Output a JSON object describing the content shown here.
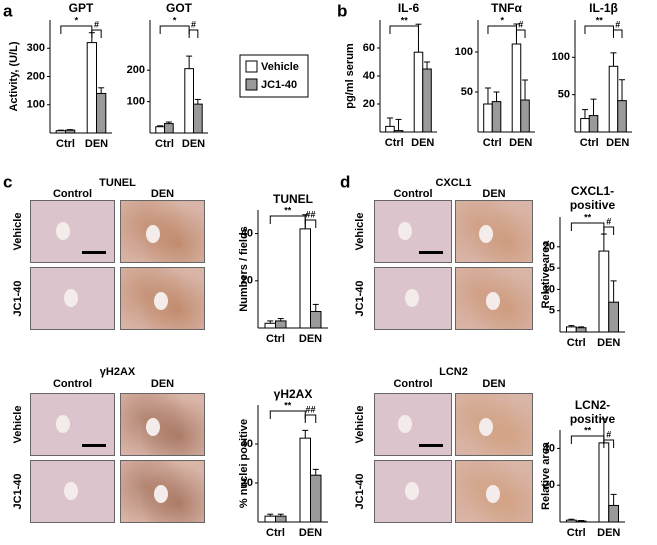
{
  "chart_data": [
    {
      "type": "bar",
      "title": "GPT",
      "y_label": "Activity, (U/L)",
      "categories": [
        "Ctrl",
        "DEN"
      ],
      "ylim": [
        0,
        400
      ],
      "yticks": [
        100,
        200,
        300
      ],
      "series": [
        {
          "name": "Vehicle",
          "color": "#ffffff",
          "values": [
            8,
            320
          ],
          "errors": [
            2,
            35
          ]
        },
        {
          "name": "JC1-40",
          "color": "#9a9a9a",
          "values": [
            10,
            140
          ],
          "errors": [
            2,
            20
          ]
        }
      ],
      "annotations": [
        "*",
        "#"
      ]
    },
    {
      "type": "bar",
      "title": "GOT",
      "categories": [
        "Ctrl",
        "DEN"
      ],
      "ylim": [
        0,
        360
      ],
      "yticks": [
        100,
        200
      ],
      "series": [
        {
          "name": "Vehicle",
          "color": "#ffffff",
          "values": [
            20,
            205
          ],
          "errors": [
            3,
            40
          ]
        },
        {
          "name": "JC1-40",
          "color": "#9a9a9a",
          "values": [
            30,
            92
          ],
          "errors": [
            5,
            15
          ]
        }
      ],
      "annotations": [
        "*",
        "#"
      ]
    },
    {
      "type": "bar",
      "title": "IL-6",
      "y_label": "pg/ml serum",
      "categories": [
        "Ctrl",
        "DEN"
      ],
      "ylim": [
        0,
        80
      ],
      "yticks": [
        20,
        40,
        60
      ],
      "series": [
        {
          "name": "Vehicle",
          "color": "#ffffff",
          "values": [
            4,
            57
          ],
          "errors": [
            6,
            20
          ]
        },
        {
          "name": "JC1-40",
          "color": "#9a9a9a",
          "values": [
            1,
            45
          ],
          "errors": [
            8,
            5
          ]
        }
      ],
      "annotations": [
        "**"
      ]
    },
    {
      "type": "bar",
      "title": "TNFα",
      "categories": [
        "Ctrl",
        "DEN"
      ],
      "ylim": [
        0,
        140
      ],
      "yticks": [
        50,
        100
      ],
      "series": [
        {
          "name": "Vehicle",
          "color": "#ffffff",
          "values": [
            35,
            110
          ],
          "errors": [
            20,
            25
          ]
        },
        {
          "name": "JC1-40",
          "color": "#9a9a9a",
          "values": [
            38,
            40
          ],
          "errors": [
            12,
            25
          ]
        }
      ],
      "annotations": [
        "*",
        "#"
      ]
    },
    {
      "type": "bar",
      "title": "IL-1β",
      "categories": [
        "Ctrl",
        "DEN"
      ],
      "ylim": [
        0,
        150
      ],
      "yticks": [
        50,
        100
      ],
      "series": [
        {
          "name": "Vehicle",
          "color": "#ffffff",
          "values": [
            18,
            88
          ],
          "errors": [
            12,
            18
          ]
        },
        {
          "name": "JC1-40",
          "color": "#9a9a9a",
          "values": [
            22,
            42
          ],
          "errors": [
            22,
            28
          ]
        }
      ],
      "annotations": [
        "**",
        "#"
      ]
    },
    {
      "type": "bar",
      "title": "TUNEL",
      "y_label": "Numbers / fields",
      "categories": [
        "Ctrl",
        "DEN"
      ],
      "ylim": [
        0,
        50
      ],
      "yticks": [
        20,
        40
      ],
      "series": [
        {
          "name": "Vehicle",
          "color": "#ffffff",
          "values": [
            2,
            42
          ],
          "errors": [
            1,
            6
          ]
        },
        {
          "name": "JC1-40",
          "color": "#9a9a9a",
          "values": [
            3,
            7
          ],
          "errors": [
            1,
            3
          ]
        }
      ],
      "annotations": [
        "**",
        "##"
      ]
    },
    {
      "type": "bar",
      "title": "γH2AX",
      "y_label": "% nuclei positive",
      "categories": [
        "Ctrl",
        "DEN"
      ],
      "ylim": [
        0,
        60
      ],
      "yticks": [
        20,
        40
      ],
      "series": [
        {
          "name": "Vehicle",
          "color": "#ffffff",
          "values": [
            3,
            43
          ],
          "errors": [
            1,
            4
          ]
        },
        {
          "name": "JC1-40",
          "color": "#9a9a9a",
          "values": [
            3,
            24
          ],
          "errors": [
            1,
            3
          ]
        }
      ],
      "annotations": [
        "**",
        "##"
      ]
    },
    {
      "type": "bar",
      "title": "CXCL1-positive",
      "y_label": "Relative area",
      "categories": [
        "Ctrl",
        "DEN"
      ],
      "ylim": [
        0,
        27
      ],
      "yticks": [
        5,
        10,
        15,
        20
      ],
      "series": [
        {
          "name": "Vehicle",
          "color": "#ffffff",
          "values": [
            1.2,
            19
          ],
          "errors": [
            0.3,
            4
          ]
        },
        {
          "name": "JC1-40",
          "color": "#9a9a9a",
          "values": [
            1,
            7
          ],
          "errors": [
            0.2,
            5
          ]
        }
      ],
      "annotations": [
        "**",
        "#"
      ]
    },
    {
      "type": "bar",
      "title": "LCN2-positive",
      "y_label": "Relative area",
      "categories": [
        "Ctrl",
        "DEN"
      ],
      "ylim": [
        0,
        50
      ],
      "yticks": [
        20,
        40
      ],
      "series": [
        {
          "name": "Vehicle",
          "color": "#ffffff",
          "values": [
            1,
            43
          ],
          "errors": [
            0.5,
            13
          ]
        },
        {
          "name": "JC1-40",
          "color": "#9a9a9a",
          "values": [
            0.5,
            9
          ],
          "errors": [
            0.3,
            6
          ]
        }
      ],
      "annotations": [
        "**",
        "#"
      ]
    }
  ],
  "figure": {
    "panel_labels": [
      "a",
      "b",
      "c",
      "d"
    ],
    "image_sets": [
      {
        "title": "TUNEL",
        "columns": [
          "Control",
          "DEN"
        ],
        "rows": [
          "Vehicle",
          "JC1-40"
        ]
      },
      {
        "title": "γH2AX",
        "columns": [
          "Control",
          "DEN"
        ],
        "rows": [
          "Vehicle",
          "JC1-40"
        ]
      },
      {
        "title": "CXCL1",
        "columns": [
          "Control",
          "DEN"
        ],
        "rows": [
          "Vehicle",
          "JC1-40"
        ]
      },
      {
        "title": "LCN2",
        "columns": [
          "Control",
          "DEN"
        ],
        "rows": [
          "Vehicle",
          "JC1-40"
        ]
      }
    ]
  }
}
